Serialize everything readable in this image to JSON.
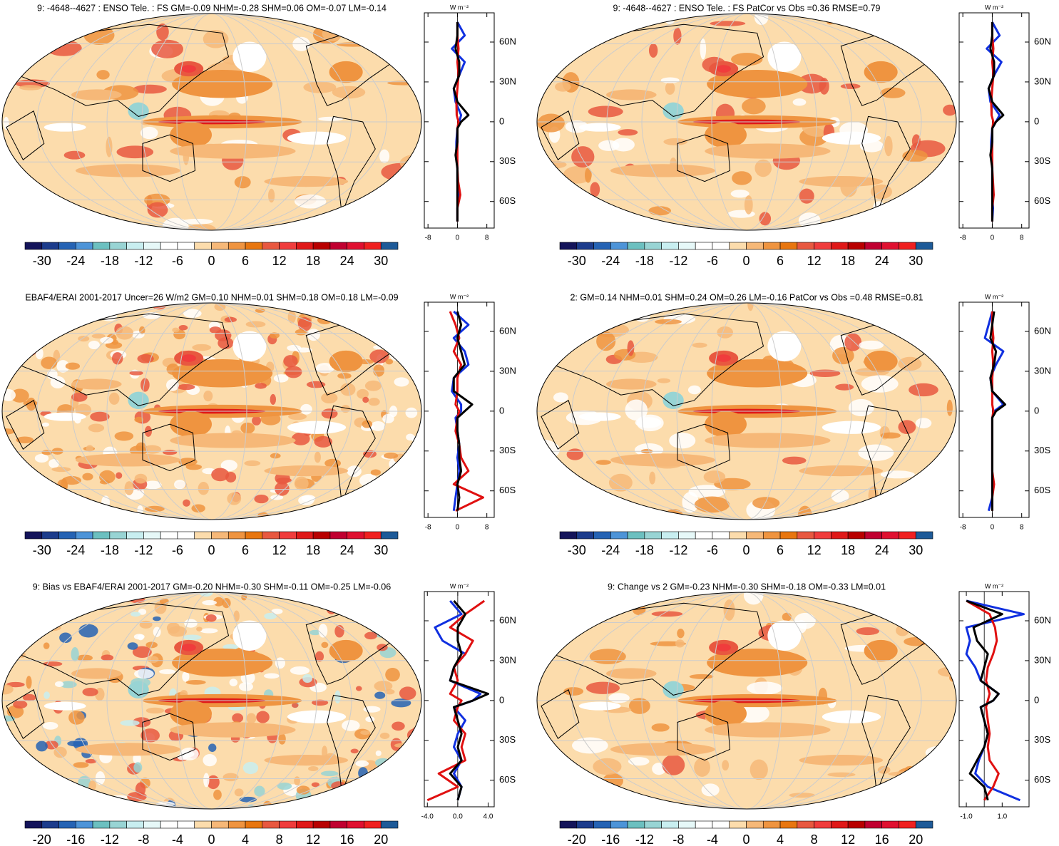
{
  "chart_data": [
    {
      "type": "map",
      "title": "9: -4648--4627 : ENSO Tele. : FS GM=-0.09 NHM=-0.28 SHM=0.06 OM=-0.07 LM=-0.14",
      "colorbar": {
        "lim": [
          -33,
          33
        ],
        "ticks": [
          -30,
          -24,
          -18,
          -12,
          -6,
          0,
          6,
          12,
          18,
          24,
          30
        ],
        "colors": [
          "#14145a",
          "#1c3c8c",
          "#2563b4",
          "#4d94d8",
          "#6cc0c0",
          "#98d4d4",
          "#c8eef0",
          "#e6f8f8",
          "#ffffff",
          "#ffffff",
          "#fcdcac",
          "#f6b878",
          "#ef9440",
          "#e8760f",
          "#e85840",
          "#f03c3c",
          "#e01818",
          "#b80000",
          "#c00030",
          "#e01030",
          "#f02020",
          "#1d5a98"
        ]
      },
      "zonal": {
        "type": "line",
        "xlabel": "W m⁻²",
        "xlim": [
          -9,
          10
        ],
        "xticks": [
          -8,
          0,
          8
        ],
        "ylim": [
          -80,
          82
        ],
        "yticks": [
          {
            "value": -60,
            "label": "60S"
          },
          {
            "value": -30,
            "label": "30S"
          },
          0,
          {
            "value": 30,
            "label": "30N"
          },
          {
            "value": 60,
            "label": "60N"
          }
        ],
        "y": [
          -75,
          -65,
          -55,
          -45,
          -35,
          -25,
          -15,
          -5,
          0,
          5,
          15,
          25,
          35,
          45,
          55,
          65,
          75
        ],
        "series": [
          {
            "color": "#1030e0",
            "values": [
              0,
              0,
              0.2,
              0,
              0,
              -0.3,
              -0.3,
              0,
              0.5,
              1,
              -0.5,
              -1,
              0.5,
              2,
              -1.5,
              2,
              0
            ]
          },
          {
            "color": "#e01010",
            "values": [
              0,
              0,
              0.8,
              0.2,
              0,
              0,
              0,
              0,
              0.3,
              -0.2,
              -0.3,
              0,
              0.3,
              0,
              0.3,
              0,
              0
            ]
          },
          {
            "color": "#000000",
            "values": [
              0,
              0,
              0,
              0,
              0,
              -0.5,
              0,
              0,
              1,
              3,
              0,
              -1,
              0.5,
              0.5,
              -0.5,
              0,
              0
            ]
          }
        ]
      }
    },
    {
      "type": "map",
      "title": "9: -4648--4627 : ENSO Tele. : FS PatCor vs Obs =0.36 RMSE=0.79",
      "colorbar": {
        "lim": [
          -33,
          33
        ],
        "ticks": [
          -30,
          -24,
          -18,
          -12,
          -6,
          0,
          6,
          12,
          18,
          24,
          30
        ],
        "colors": [
          "#14145a",
          "#1c3c8c",
          "#2563b4",
          "#4d94d8",
          "#6cc0c0",
          "#98d4d4",
          "#c8eef0",
          "#e6f8f8",
          "#ffffff",
          "#ffffff",
          "#fcdcac",
          "#f6b878",
          "#ef9440",
          "#e8760f",
          "#e85840",
          "#f03c3c",
          "#e01818",
          "#b80000",
          "#c00030",
          "#e01030",
          "#f02020",
          "#1d5a98"
        ]
      },
      "zonal": {
        "type": "line",
        "xlabel": "W m⁻²",
        "xlim": [
          -9,
          10
        ],
        "xticks": [
          -8,
          0,
          8
        ],
        "ylim": [
          -80,
          82
        ],
        "yticks": [
          {
            "value": -60,
            "label": "60S"
          },
          {
            "value": -30,
            "label": "30S"
          },
          0,
          {
            "value": 30,
            "label": "30N"
          },
          {
            "value": 60,
            "label": "60N"
          }
        ],
        "y": [
          -75,
          -65,
          -55,
          -45,
          -35,
          -25,
          -15,
          -5,
          0,
          5,
          15,
          25,
          35,
          45,
          55,
          65,
          75
        ],
        "series": [
          {
            "color": "#1030e0",
            "values": [
              0,
              0.2,
              0,
              0,
              0,
              -0.3,
              -0.3,
              0,
              1,
              2,
              -0.5,
              -1,
              0.5,
              2.5,
              -1.5,
              2,
              0
            ]
          },
          {
            "color": "#e01010",
            "values": [
              0,
              0,
              0.4,
              0.2,
              0,
              0,
              0,
              0,
              0.3,
              -0.2,
              -0.3,
              0,
              0.3,
              0,
              0.3,
              0,
              0
            ]
          },
          {
            "color": "#000000",
            "values": [
              0,
              0,
              0,
              0,
              0,
              -0.5,
              0,
              0,
              1,
              3,
              0,
              -1,
              0.5,
              0.5,
              -0.5,
              0,
              0
            ]
          }
        ]
      }
    },
    {
      "type": "map",
      "title": "EBAF4/ERAI 2001-2017 Uncer=26 W/m2 GM=0.10 NHM=0.01 SHM=0.18 OM=0.18 LM=-0.09",
      "colorbar": {
        "lim": [
          -33,
          33
        ],
        "ticks": [
          -30,
          -24,
          -18,
          -12,
          -6,
          0,
          6,
          12,
          18,
          24,
          30
        ],
        "colors": [
          "#14145a",
          "#1c3c8c",
          "#2563b4",
          "#4d94d8",
          "#6cc0c0",
          "#98d4d4",
          "#c8eef0",
          "#e6f8f8",
          "#ffffff",
          "#ffffff",
          "#fcdcac",
          "#f6b878",
          "#ef9440",
          "#e8760f",
          "#e85840",
          "#f03c3c",
          "#e01818",
          "#b80000",
          "#c00030",
          "#e01030",
          "#f02020",
          "#1d5a98"
        ]
      },
      "zonal": {
        "type": "line",
        "xlabel": "W m⁻²",
        "xlim": [
          -9,
          10
        ],
        "xticks": [
          -8,
          0,
          8
        ],
        "ylim": [
          -80,
          82
        ],
        "yticks": [
          {
            "value": -60,
            "label": "60S"
          },
          {
            "value": -30,
            "label": "30S"
          },
          0,
          {
            "value": 30,
            "label": "30N"
          },
          {
            "value": 60,
            "label": "60N"
          }
        ],
        "y": [
          -75,
          -65,
          -55,
          -45,
          -35,
          -25,
          -15,
          -5,
          0,
          5,
          15,
          25,
          35,
          45,
          55,
          65,
          75
        ],
        "series": [
          {
            "color": "#1030e0",
            "values": [
              -1,
              -0.5,
              0,
              0.5,
              0,
              0.5,
              0,
              -0.5,
              1,
              1,
              -1.5,
              -1,
              3,
              2,
              -1,
              3,
              -1
            ]
          },
          {
            "color": "#e01010",
            "values": [
              -0.5,
              7,
              -1,
              3,
              1,
              0.5,
              -0.5,
              0,
              0.5,
              -0.5,
              0,
              0,
              1,
              -1,
              0.5,
              -0.5,
              -2
            ]
          },
          {
            "color": "#000000",
            "values": [
              0,
              0.5,
              0,
              1,
              0.5,
              0.5,
              0,
              0,
              2,
              4,
              -1,
              -1,
              2,
              1,
              0,
              1,
              0
            ]
          }
        ]
      }
    },
    {
      "type": "map",
      "title": "2: GM=0.14 NHM=0.01 SHM=0.24 OM=0.26 LM=-0.16 PatCor vs Obs =0.48 RMSE=0.81",
      "colorbar": {
        "lim": [
          -33,
          33
        ],
        "ticks": [
          -30,
          -24,
          -18,
          -12,
          -6,
          0,
          6,
          12,
          18,
          24,
          30
        ],
        "colors": [
          "#14145a",
          "#1c3c8c",
          "#2563b4",
          "#4d94d8",
          "#6cc0c0",
          "#98d4d4",
          "#c8eef0",
          "#e6f8f8",
          "#ffffff",
          "#ffffff",
          "#fcdcac",
          "#f6b878",
          "#ef9440",
          "#e8760f",
          "#e85840",
          "#f03c3c",
          "#e01818",
          "#b80000",
          "#c00030",
          "#e01030",
          "#f02020",
          "#1d5a98"
        ]
      },
      "zonal": {
        "type": "line",
        "xlabel": "W m⁻²",
        "xlim": [
          -9,
          10
        ],
        "xticks": [
          -8,
          0,
          8
        ],
        "ylim": [
          -80,
          82
        ],
        "yticks": [
          {
            "value": -60,
            "label": "60S"
          },
          {
            "value": -30,
            "label": "30S"
          },
          0,
          {
            "value": 30,
            "label": "30N"
          },
          {
            "value": 60,
            "label": "60N"
          }
        ],
        "y": [
          -75,
          -65,
          -55,
          -45,
          -35,
          -25,
          -15,
          -5,
          0,
          5,
          15,
          25,
          35,
          45,
          55,
          65,
          75
        ],
        "series": [
          {
            "color": "#1030e0",
            "values": [
              -1,
              0,
              0,
              0,
              0,
              0,
              0,
              0,
              0.5,
              3,
              0,
              -0.5,
              1,
              3,
              -2,
              -1,
              0
            ]
          },
          {
            "color": "#e01010",
            "values": [
              0,
              0,
              0.5,
              0,
              0,
              0,
              0,
              0,
              0.3,
              0,
              0,
              0,
              0.3,
              0,
              0.3,
              0,
              0
            ]
          },
          {
            "color": "#000000",
            "values": [
              0,
              0,
              0,
              0,
              0,
              0,
              0,
              0,
              1,
              3.5,
              0,
              -0.5,
              0.5,
              1,
              -0.5,
              0,
              0.5
            ]
          }
        ]
      }
    },
    {
      "type": "map",
      "title": "9: Bias vs EBAF4/ERAI 2001-2017 GM=-0.20 NHM=-0.30 SHM=-0.11 OM=-0.25 LM=-0.06",
      "colorbar": {
        "lim": [
          -22,
          22
        ],
        "ticks": [
          -20,
          -16,
          -12,
          -8,
          -4,
          0,
          4,
          8,
          12,
          16,
          20
        ],
        "colors": [
          "#14145a",
          "#1c3c8c",
          "#2563b4",
          "#4d94d8",
          "#6cc0c0",
          "#98d4d4",
          "#c8eef0",
          "#e6f8f8",
          "#ffffff",
          "#ffffff",
          "#fcdcac",
          "#f6b878",
          "#ef9440",
          "#e8760f",
          "#e85840",
          "#f03c3c",
          "#e01818",
          "#b80000",
          "#c00030",
          "#e01030",
          "#f02020",
          "#1d5a98"
        ]
      },
      "zonal": {
        "type": "line",
        "xlabel": "W m⁻²",
        "xlim": [
          -4.4,
          4.8
        ],
        "xticks": [
          {
            "value": -4,
            "label": "-4.0"
          },
          {
            "value": 0,
            "label": "0.0"
          },
          {
            "value": 4,
            "label": "4.0"
          }
        ],
        "ylim": [
          -80,
          82
        ],
        "yticks": [
          {
            "value": -60,
            "label": "60S"
          },
          {
            "value": -30,
            "label": "30S"
          },
          0,
          {
            "value": 30,
            "label": "30N"
          },
          {
            "value": 60,
            "label": "60N"
          }
        ],
        "y": [
          -75,
          -65,
          -55,
          -45,
          -35,
          -25,
          -15,
          -5,
          0,
          5,
          15,
          25,
          35,
          45,
          55,
          65,
          75
        ],
        "series": [
          {
            "color": "#1030e0",
            "values": [
              0,
              0.5,
              -0.5,
              0.5,
              -0.5,
              0,
              1,
              -0.5,
              2,
              3,
              -1,
              -0.5,
              1,
              -2,
              -3,
              0.5,
              -1
            ]
          },
          {
            "color": "#e01010",
            "values": [
              -4,
              0,
              -2.5,
              1,
              0.5,
              1,
              -0.5,
              0,
              0.5,
              -1,
              0,
              -0.5,
              1,
              2,
              -1,
              1,
              3.5
            ]
          },
          {
            "color": "#000000",
            "values": [
              0,
              0.5,
              -1,
              0.5,
              0,
              0.5,
              0,
              -0.5,
              2,
              4,
              -1,
              -0.5,
              0.5,
              0,
              0,
              1,
              -0.5
            ]
          }
        ]
      }
    },
    {
      "type": "map",
      "title": "9: Change vs 2 GM=-0.23 NHM=-0.30 SHM=-0.18 OM=-0.33 LM=0.01",
      "colorbar": {
        "lim": [
          -22,
          22
        ],
        "ticks": [
          -20,
          -16,
          -12,
          -8,
          -4,
          0,
          4,
          8,
          12,
          16,
          20
        ],
        "colors": [
          "#14145a",
          "#1c3c8c",
          "#2563b4",
          "#4d94d8",
          "#6cc0c0",
          "#98d4d4",
          "#c8eef0",
          "#e6f8f8",
          "#ffffff",
          "#ffffff",
          "#fcdcac",
          "#f6b878",
          "#ef9440",
          "#e8760f",
          "#e85840",
          "#f03c3c",
          "#e01818",
          "#b80000",
          "#c00030",
          "#e01030",
          "#f02020",
          "#1d5a98"
        ]
      },
      "zonal": {
        "type": "line",
        "xlabel": "W m⁻²",
        "xlim": [
          -1.4,
          2.5
        ],
        "xticks": [
          {
            "value": -1,
            "label": "-1.0"
          },
          {
            "value": 1,
            "label": "1.0"
          }
        ],
        "ylim": [
          -80,
          82
        ],
        "yticks": [
          {
            "value": -60,
            "label": "60S"
          },
          {
            "value": -30,
            "label": "30S"
          },
          0,
          {
            "value": 30,
            "label": "30N"
          },
          {
            "value": 60,
            "label": "60N"
          }
        ],
        "y": [
          -75,
          -65,
          -55,
          -45,
          -35,
          -25,
          -15,
          -5,
          0,
          5,
          15,
          25,
          35,
          45,
          55,
          65,
          75
        ],
        "series": [
          {
            "color": "#1030e0",
            "values": [
              2,
              0.2,
              -0.5,
              -0.3,
              0,
              0.2,
              0,
              -0.2,
              0.5,
              0.8,
              -0.2,
              -0.5,
              -1,
              -0.8,
              -1,
              2.2,
              -1
            ]
          },
          {
            "color": "#e01010",
            "values": [
              0,
              0.5,
              0.8,
              0.3,
              0.2,
              0.3,
              0.2,
              0.1,
              0.2,
              0.3,
              0.1,
              0.2,
              0.5,
              0.7,
              0.6,
              0.3,
              -1
            ]
          },
          {
            "color": "#000000",
            "values": [
              0.2,
              0,
              -0.8,
              -0.4,
              0,
              0.2,
              0,
              -0.2,
              0.5,
              0.8,
              -0.2,
              0,
              0.2,
              -0.4,
              -0.6,
              1,
              -1
            ]
          }
        ]
      }
    }
  ]
}
